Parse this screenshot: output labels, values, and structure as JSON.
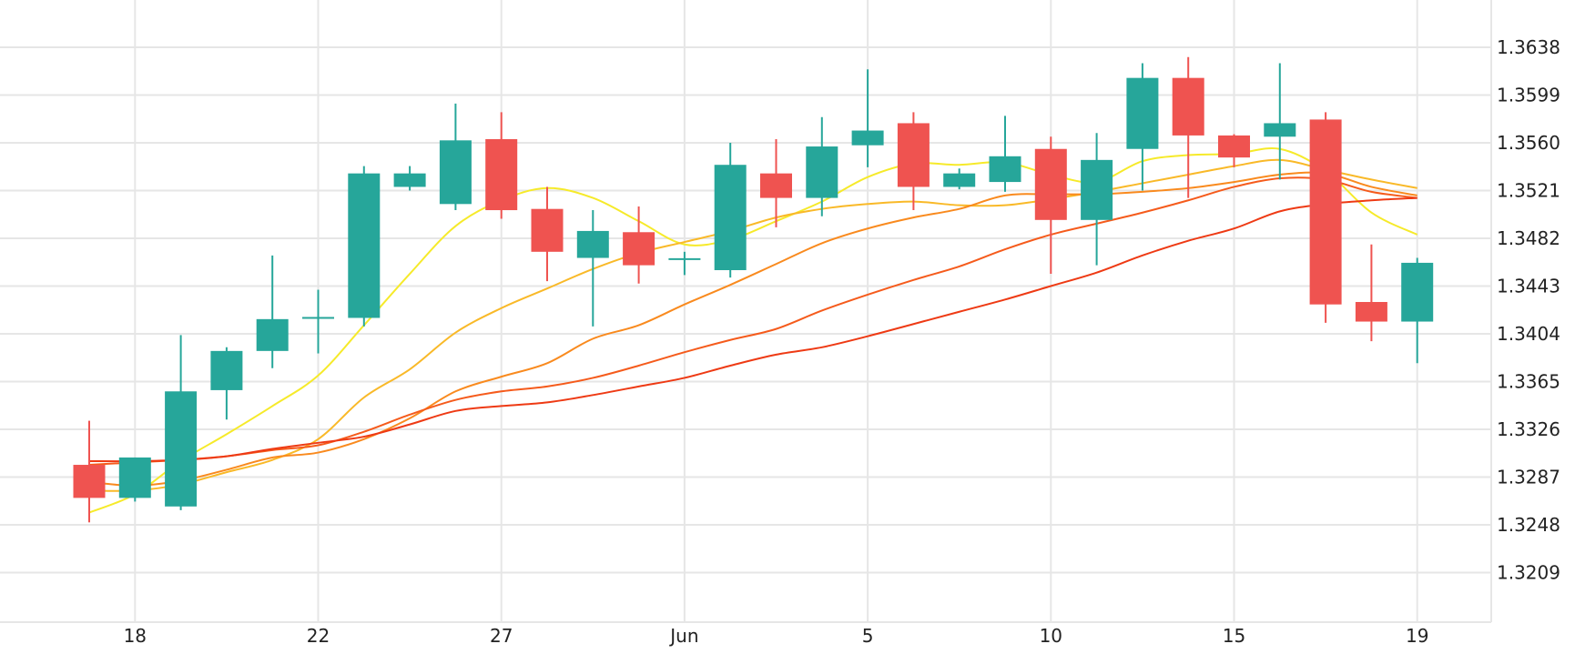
{
  "chart_data": {
    "type": "candlestick",
    "title": "",
    "xlabel": "",
    "ylabel": "",
    "x_tick_labels": [
      {
        "label": "18",
        "index": 1
      },
      {
        "label": "22",
        "index": 5
      },
      {
        "label": "27",
        "index": 9
      },
      {
        "label": "Jun",
        "index": 13
      },
      {
        "label": "5",
        "index": 17
      },
      {
        "label": "10",
        "index": 21
      },
      {
        "label": "15",
        "index": 25
      },
      {
        "label": "19",
        "index": 29
      }
    ],
    "y_ticks": [
      "1.3209",
      "1.3248",
      "1.3287",
      "1.3326",
      "1.3365",
      "1.3404",
      "1.3443",
      "1.3482",
      "1.3521",
      "1.3560",
      "1.3599",
      "1.3638"
    ],
    "ylim": [
      1.317,
      1.368
    ],
    "grid": true,
    "colors": {
      "up": "#26a69a",
      "down": "#ef5350",
      "grid": "#e6e6e6",
      "ma": [
        "#f6ea2a",
        "#f9b928",
        "#f98a1e",
        "#f55b1c",
        "#ee3a14"
      ]
    },
    "candles": [
      {
        "o": 1.3297,
        "h": 1.3333,
        "l": 1.325,
        "c": 1.327
      },
      {
        "o": 1.327,
        "h": 1.3303,
        "l": 1.3267,
        "c": 1.3303
      },
      {
        "o": 1.3263,
        "h": 1.3403,
        "l": 1.326,
        "c": 1.3357
      },
      {
        "o": 1.3358,
        "h": 1.3393,
        "l": 1.3334,
        "c": 1.339
      },
      {
        "o": 1.339,
        "h": 1.3468,
        "l": 1.3376,
        "c": 1.3416
      },
      {
        "o": 1.3417,
        "h": 1.344,
        "l": 1.3388,
        "c": 1.3417
      },
      {
        "o": 1.3417,
        "h": 1.3541,
        "l": 1.341,
        "c": 1.3535
      },
      {
        "o": 1.3524,
        "h": 1.3541,
        "l": 1.3521,
        "c": 1.3535
      },
      {
        "o": 1.351,
        "h": 1.3592,
        "l": 1.3505,
        "c": 1.3562
      },
      {
        "o": 1.3563,
        "h": 1.3585,
        "l": 1.3498,
        "c": 1.3505
      },
      {
        "o": 1.3506,
        "h": 1.3524,
        "l": 1.3447,
        "c": 1.3471
      },
      {
        "o": 1.3466,
        "h": 1.3505,
        "l": 1.341,
        "c": 1.3488
      },
      {
        "o": 1.3487,
        "h": 1.3508,
        "l": 1.3445,
        "c": 1.346
      },
      {
        "o": 1.3465,
        "h": 1.3471,
        "l": 1.3452,
        "c": 1.3465
      },
      {
        "o": 1.3456,
        "h": 1.356,
        "l": 1.345,
        "c": 1.3542
      },
      {
        "o": 1.3535,
        "h": 1.3563,
        "l": 1.3491,
        "c": 1.3515
      },
      {
        "o": 1.3515,
        "h": 1.3581,
        "l": 1.35,
        "c": 1.3557
      },
      {
        "o": 1.3558,
        "h": 1.362,
        "l": 1.354,
        "c": 1.357
      },
      {
        "o": 1.3576,
        "h": 1.3585,
        "l": 1.3505,
        "c": 1.3524
      },
      {
        "o": 1.3524,
        "h": 1.3539,
        "l": 1.3522,
        "c": 1.3535
      },
      {
        "o": 1.3528,
        "h": 1.3582,
        "l": 1.352,
        "c": 1.3549
      },
      {
        "o": 1.3555,
        "h": 1.3565,
        "l": 1.3453,
        "c": 1.3497
      },
      {
        "o": 1.3497,
        "h": 1.3568,
        "l": 1.346,
        "c": 1.3546
      },
      {
        "o": 1.3555,
        "h": 1.3625,
        "l": 1.3521,
        "c": 1.3613
      },
      {
        "o": 1.3613,
        "h": 1.363,
        "l": 1.3515,
        "c": 1.3566
      },
      {
        "o": 1.3566,
        "h": 1.3567,
        "l": 1.354,
        "c": 1.3548
      },
      {
        "o": 1.3565,
        "h": 1.3625,
        "l": 1.353,
        "c": 1.3576
      },
      {
        "o": 1.3579,
        "h": 1.3585,
        "l": 1.3413,
        "c": 1.3428
      },
      {
        "o": 1.343,
        "h": 1.3477,
        "l": 1.3398,
        "c": 1.3414
      },
      {
        "o": 1.3414,
        "h": 1.3466,
        "l": 1.338,
        "c": 1.3462
      }
    ],
    "moving_averages": [
      {
        "values": [
          1.3258,
          1.3273,
          1.33,
          1.3322,
          1.3345,
          1.337,
          1.3411,
          1.3453,
          1.3492,
          1.3513,
          1.3523,
          1.3515,
          1.3496,
          1.3477,
          1.3481,
          1.3496,
          1.3512,
          1.3532,
          1.3543,
          1.3542,
          1.3544,
          1.3534,
          1.3528,
          1.3545,
          1.355,
          1.3551,
          1.3555,
          1.3537,
          1.3503,
          1.3485
        ]
      },
      {
        "values": [
          1.3276,
          1.3276,
          1.3281,
          1.3291,
          1.3301,
          1.3318,
          1.3352,
          1.3375,
          1.3405,
          1.3425,
          1.3441,
          1.3457,
          1.347,
          1.3479,
          1.3488,
          1.3499,
          1.3506,
          1.351,
          1.3512,
          1.3509,
          1.3509,
          1.3514,
          1.352,
          1.3527,
          1.3534,
          1.3541,
          1.3546,
          1.3538,
          1.353,
          1.3523
        ]
      },
      {
        "values": [
          1.3283,
          1.328,
          1.3284,
          1.3293,
          1.3303,
          1.3307,
          1.3318,
          1.3335,
          1.3357,
          1.3369,
          1.338,
          1.34,
          1.3411,
          1.3428,
          1.3444,
          1.3461,
          1.3478,
          1.349,
          1.3499,
          1.3506,
          1.3517,
          1.3518,
          1.3518,
          1.352,
          1.3523,
          1.3528,
          1.3534,
          1.3535,
          1.3524,
          1.3517
        ]
      },
      {
        "values": [
          1.3297,
          1.3299,
          1.3301,
          1.3304,
          1.3309,
          1.3313,
          1.3324,
          1.3338,
          1.335,
          1.3357,
          1.3361,
          1.3368,
          1.3378,
          1.3389,
          1.3399,
          1.3408,
          1.3423,
          1.3436,
          1.3448,
          1.3459,
          1.3473,
          1.3485,
          1.3494,
          1.3503,
          1.3513,
          1.3524,
          1.3531,
          1.353,
          1.352,
          1.3515
        ]
      },
      {
        "values": [
          1.33,
          1.33,
          1.3301,
          1.3304,
          1.331,
          1.3315,
          1.332,
          1.333,
          1.3341,
          1.3345,
          1.3348,
          1.3354,
          1.3361,
          1.3368,
          1.3378,
          1.3387,
          1.3393,
          1.3402,
          1.3412,
          1.3422,
          1.3432,
          1.3443,
          1.3454,
          1.3468,
          1.348,
          1.349,
          1.3504,
          1.351,
          1.3513,
          1.3515
        ]
      }
    ]
  }
}
